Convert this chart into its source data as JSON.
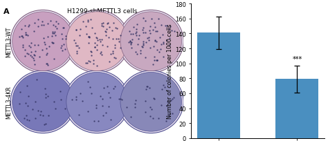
{
  "categories": [
    "METTL3-WT",
    "METTL3-4KR"
  ],
  "values": [
    141,
    79
  ],
  "errors": [
    22,
    18
  ],
  "bar_color": "#4A8FC0",
  "ylabel": "Number of colonies per 1000 cells",
  "ylim": [
    0,
    180
  ],
  "yticks": [
    0,
    20,
    40,
    60,
    80,
    100,
    120,
    140,
    160,
    180
  ],
  "significance": "***",
  "title": "H1299-shMETTL3 cells",
  "panel_label": "A",
  "row_labels": [
    "METTL3-WT",
    "METTL3-4KR"
  ],
  "dish_colors_row1": [
    [
      "#C8A8C8",
      "#E8C0C8",
      "#D8B0C8"
    ],
    [
      "#9890C0",
      "#9890C0",
      "#9890C0"
    ]
  ],
  "dish_border_color": "#7070A0",
  "bg_color": "#F5F5F5",
  "figure_width": 4.74,
  "figure_height": 2.05
}
